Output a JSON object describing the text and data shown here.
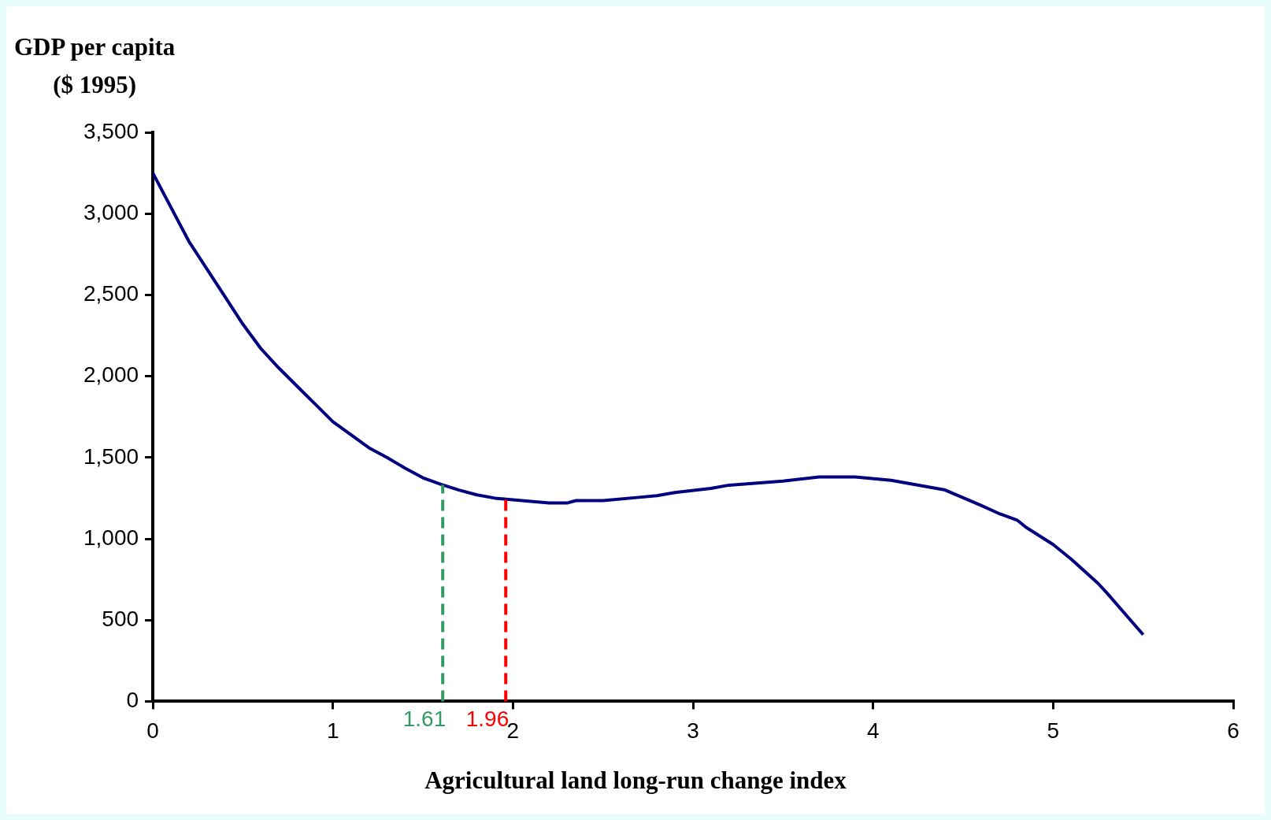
{
  "chart_data": {
    "type": "line",
    "ylabel": "GDP per capita\n($ 1995)",
    "xlabel": "Agricultural land long-run change index",
    "series": [
      {
        "color": "#000080",
        "x": [
          0,
          0.2,
          0.3,
          0.4,
          0.5,
          0.6,
          0.7,
          0.8,
          0.9,
          1.0,
          1.1,
          1.2,
          1.3,
          1.4,
          1.5,
          1.6,
          1.7,
          1.8,
          1.9,
          2.0,
          2.2,
          2.3,
          2.35,
          2.5,
          2.7,
          2.8,
          2.9,
          3.1,
          3.2,
          3.5,
          3.7,
          3.9,
          4.1,
          4.4,
          4.6,
          4.7,
          4.8,
          4.85,
          5.0,
          5.1,
          5.25,
          5.3,
          5.5
        ],
        "values": [
          3250,
          2830,
          2660,
          2490,
          2320,
          2170,
          2050,
          1940,
          1830,
          1720,
          1640,
          1560,
          1500,
          1435,
          1375,
          1335,
          1300,
          1270,
          1250,
          1240,
          1220,
          1220,
          1235,
          1235,
          1255,
          1265,
          1285,
          1310,
          1330,
          1355,
          1380,
          1380,
          1360,
          1300,
          1205,
          1155,
          1115,
          1070,
          965,
          875,
          725,
          665,
          410
        ]
      }
    ],
    "ref_lines": [
      {
        "axis": "x",
        "value": 1.61,
        "label": "1.61",
        "color": "#339966",
        "line_style": "dashed"
      },
      {
        "axis": "x",
        "value": 1.96,
        "label": "1.96",
        "color": "#ff0000",
        "line_style": "dashed"
      }
    ],
    "xlim": [
      0,
      6
    ],
    "xticks": [
      0,
      1,
      2,
      3,
      4,
      5,
      6
    ],
    "ylim": [
      0,
      3500
    ],
    "yticks": [
      {
        "value": 0,
        "label": "0"
      },
      {
        "value": 500,
        "label": "500"
      },
      {
        "value": 1000,
        "label": "1,000"
      },
      {
        "value": 1500,
        "label": "1,500"
      },
      {
        "value": 2000,
        "label": "2,000"
      },
      {
        "value": 2500,
        "label": "2,500"
      },
      {
        "value": 3000,
        "label": "3,000"
      },
      {
        "value": 3500,
        "label": "3,500"
      }
    ],
    "grid": false,
    "legend": false,
    "marker": "none",
    "line_style": "solid"
  }
}
